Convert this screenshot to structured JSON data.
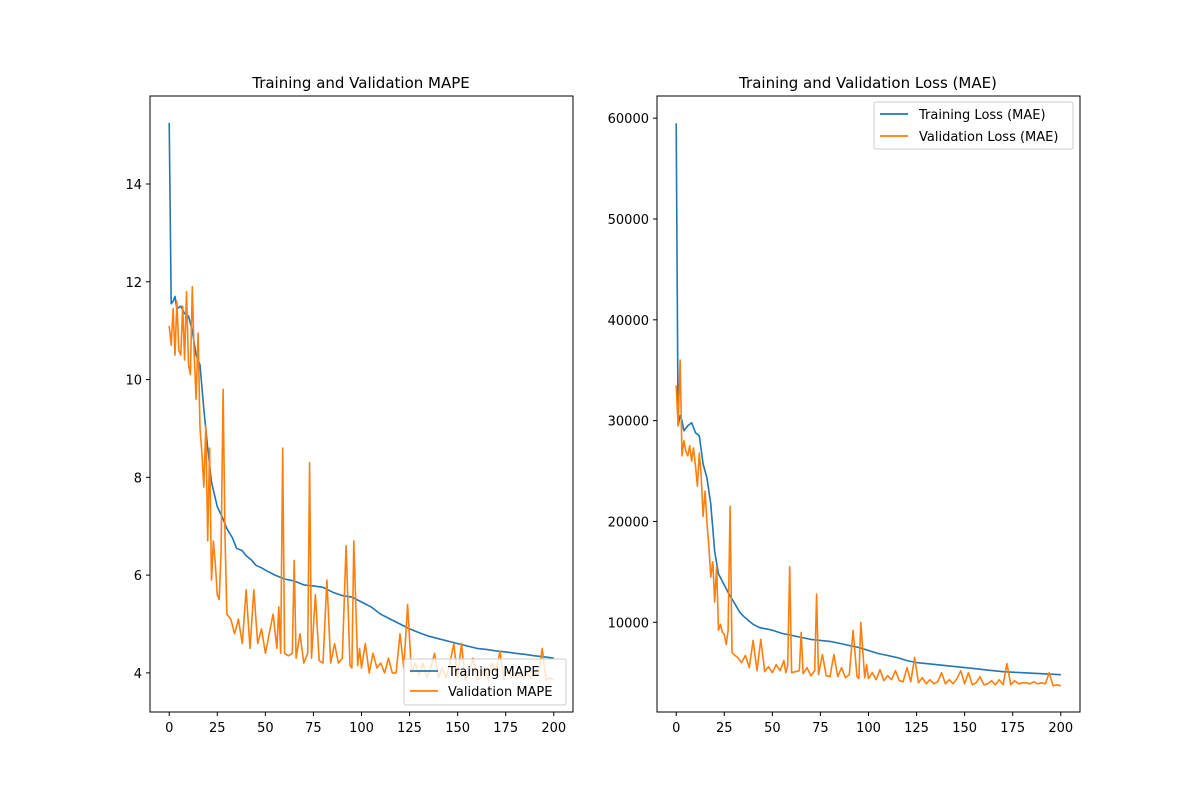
{
  "chart_data": [
    {
      "type": "line",
      "title": "Training and Validation MAPE",
      "xlabel": "",
      "ylabel": "",
      "xlim": [
        -10,
        210
      ],
      "ylim": [
        3.2,
        15.8
      ],
      "xticks": [
        0,
        25,
        50,
        75,
        100,
        125,
        150,
        175,
        200
      ],
      "yticks": [
        4,
        6,
        8,
        10,
        12,
        14
      ],
      "grid": false,
      "legend_position": "bottom-right",
      "series": [
        {
          "name": "Training MAPE",
          "color": "#1f77b4",
          "x": [
            0,
            1,
            2,
            3,
            4,
            6,
            8,
            10,
            12,
            14,
            16,
            18,
            20,
            22,
            25,
            28,
            30,
            33,
            35,
            38,
            40,
            43,
            45,
            48,
            50,
            55,
            60,
            65,
            70,
            75,
            80,
            85,
            90,
            95,
            100,
            105,
            110,
            115,
            120,
            125,
            130,
            135,
            140,
            145,
            150,
            155,
            160,
            165,
            170,
            175,
            180,
            185,
            190,
            195,
            200
          ],
          "y": [
            15.25,
            11.55,
            11.6,
            11.7,
            11.45,
            11.5,
            11.35,
            11.3,
            11.0,
            10.5,
            10.3,
            9.4,
            8.6,
            7.9,
            7.4,
            7.15,
            6.95,
            6.75,
            6.55,
            6.5,
            6.4,
            6.3,
            6.2,
            6.15,
            6.1,
            6.0,
            5.92,
            5.88,
            5.8,
            5.78,
            5.75,
            5.65,
            5.58,
            5.55,
            5.45,
            5.35,
            5.2,
            5.1,
            5.0,
            4.9,
            4.82,
            4.75,
            4.7,
            4.65,
            4.6,
            4.55,
            4.5,
            4.48,
            4.45,
            4.43,
            4.4,
            4.38,
            4.35,
            4.33,
            4.3
          ]
        },
        {
          "name": "Validation MAPE",
          "color": "#ff7f0e",
          "x": [
            0,
            1,
            2,
            3,
            4,
            5,
            6,
            7,
            8,
            9,
            10,
            11,
            12,
            13,
            14,
            15,
            16,
            17,
            18,
            19,
            20,
            21,
            22,
            23,
            24,
            25,
            26,
            27,
            28,
            29,
            30,
            32,
            34,
            36,
            38,
            40,
            42,
            44,
            46,
            48,
            50,
            52,
            54,
            56,
            57,
            58,
            59,
            60,
            62,
            64,
            65,
            66,
            68,
            70,
            72,
            73,
            74,
            76,
            78,
            80,
            82,
            84,
            86,
            88,
            90,
            92,
            94,
            95,
            96,
            98,
            99,
            100,
            102,
            104,
            106,
            108,
            110,
            112,
            114,
            116,
            118,
            120,
            122,
            124,
            126,
            128,
            130,
            132,
            134,
            136,
            138,
            140,
            142,
            144,
            146,
            148,
            150,
            152,
            154,
            156,
            158,
            160,
            162,
            164,
            166,
            168,
            170,
            172,
            174,
            176,
            178,
            180,
            182,
            184,
            186,
            188,
            190,
            192,
            194,
            196,
            198,
            200
          ],
          "y": [
            11.1,
            10.7,
            11.45,
            10.5,
            11.6,
            10.6,
            10.5,
            11.5,
            10.4,
            11.8,
            10.3,
            10.1,
            11.9,
            10.5,
            9.6,
            10.95,
            9.0,
            8.5,
            7.8,
            9.05,
            6.7,
            8.6,
            5.9,
            6.7,
            6.2,
            5.6,
            5.5,
            6.5,
            9.8,
            6.8,
            5.2,
            5.1,
            4.8,
            5.1,
            4.6,
            5.7,
            4.5,
            5.7,
            4.6,
            4.9,
            4.4,
            4.8,
            5.2,
            4.5,
            5.35,
            4.4,
            8.6,
            4.4,
            4.35,
            4.4,
            6.3,
            4.3,
            4.8,
            4.2,
            4.4,
            8.3,
            4.3,
            5.6,
            4.25,
            4.2,
            5.9,
            4.2,
            4.6,
            4.2,
            4.3,
            6.6,
            4.15,
            4.1,
            6.7,
            4.15,
            4.5,
            4.1,
            4.6,
            4.0,
            4.4,
            4.1,
            4.2,
            4.0,
            4.3,
            4.0,
            4.0,
            4.8,
            4.1,
            5.4,
            4.0,
            4.2,
            3.95,
            4.2,
            3.9,
            4.1,
            4.4,
            3.9,
            4.1,
            3.9,
            4.2,
            4.6,
            3.9,
            4.6,
            3.85,
            4.0,
            4.3,
            3.85,
            3.9,
            4.1,
            3.85,
            4.2,
            4.0,
            4.45,
            3.85,
            4.05,
            3.9,
            4.0,
            3.95,
            3.9,
            4.0,
            3.9,
            4.0,
            3.95,
            4.5,
            3.85,
            3.9,
            3.85
          ]
        }
      ]
    },
    {
      "type": "line",
      "title": "Training and Validation Loss (MAE)",
      "xlabel": "",
      "ylabel": "",
      "xlim": [
        -10,
        210
      ],
      "ylim": [
        1100,
        62200
      ],
      "xticks": [
        0,
        25,
        50,
        75,
        100,
        125,
        150,
        175,
        200
      ],
      "yticks": [
        10000,
        20000,
        30000,
        40000,
        50000,
        60000
      ],
      "grid": false,
      "legend_position": "top-right",
      "series": [
        {
          "name": "Training Loss (MAE)",
          "color": "#1f77b4",
          "x": [
            0,
            1,
            2,
            3,
            4,
            6,
            8,
            10,
            12,
            14,
            16,
            18,
            20,
            22,
            25,
            28,
            30,
            33,
            35,
            38,
            40,
            43,
            45,
            48,
            50,
            55,
            60,
            65,
            70,
            75,
            80,
            85,
            90,
            95,
            100,
            105,
            110,
            115,
            120,
            125,
            130,
            135,
            140,
            145,
            150,
            155,
            160,
            165,
            170,
            175,
            180,
            185,
            190,
            195,
            200
          ],
          "y": [
            59500,
            29500,
            30500,
            30000,
            29000,
            29500,
            29800,
            28800,
            28500,
            25700,
            24300,
            21700,
            17000,
            14800,
            13700,
            12600,
            12000,
            11000,
            10600,
            10100,
            9800,
            9500,
            9400,
            9300,
            9200,
            8900,
            8700,
            8500,
            8300,
            8200,
            8100,
            7900,
            7700,
            7500,
            7200,
            6900,
            6700,
            6500,
            6200,
            6000,
            5900,
            5800,
            5700,
            5600,
            5500,
            5400,
            5300,
            5200,
            5100,
            5050,
            5000,
            4950,
            4900,
            4850,
            4800
          ]
        },
        {
          "name": "Validation Loss (MAE)",
          "color": "#ff7f0e",
          "x": [
            0,
            1,
            2,
            3,
            4,
            5,
            6,
            7,
            8,
            9,
            10,
            11,
            12,
            13,
            14,
            15,
            16,
            17,
            18,
            19,
            20,
            21,
            22,
            23,
            24,
            25,
            26,
            27,
            28,
            29,
            30,
            32,
            34,
            36,
            38,
            40,
            42,
            44,
            46,
            48,
            50,
            52,
            54,
            56,
            57,
            58,
            59,
            60,
            62,
            64,
            65,
            66,
            68,
            70,
            72,
            73,
            74,
            76,
            78,
            80,
            82,
            84,
            86,
            88,
            90,
            92,
            94,
            95,
            96,
            98,
            99,
            100,
            102,
            104,
            106,
            108,
            110,
            112,
            114,
            116,
            118,
            120,
            122,
            124,
            126,
            128,
            130,
            132,
            134,
            136,
            138,
            140,
            142,
            144,
            146,
            148,
            150,
            152,
            154,
            156,
            158,
            160,
            162,
            164,
            166,
            168,
            170,
            172,
            174,
            176,
            178,
            180,
            182,
            184,
            186,
            188,
            190,
            192,
            194,
            196,
            198,
            200
          ],
          "y": [
            33500,
            29500,
            36000,
            26500,
            28000,
            27000,
            26500,
            27500,
            26000,
            27300,
            25500,
            23500,
            26800,
            24500,
            20500,
            23000,
            19800,
            17500,
            14500,
            16000,
            12000,
            15500,
            9200,
            9800,
            9000,
            8800,
            7800,
            9200,
            21500,
            7000,
            6800,
            6500,
            6000,
            6700,
            5500,
            8200,
            5200,
            8300,
            5100,
            5600,
            5000,
            5800,
            5200,
            6200,
            5000,
            5700,
            15500,
            5000,
            5100,
            5200,
            9000,
            4900,
            5500,
            4700,
            5200,
            12800,
            4800,
            6800,
            4700,
            4600,
            6800,
            4600,
            5500,
            4500,
            4800,
            9200,
            4600,
            4400,
            10000,
            4500,
            5800,
            4400,
            5000,
            4300,
            5300,
            4200,
            4700,
            4300,
            5200,
            4200,
            4100,
            5500,
            4100,
            6500,
            4000,
            4500,
            3900,
            4300,
            3900,
            4100,
            5000,
            3900,
            4300,
            3900,
            4400,
            5200,
            3900,
            5000,
            3800,
            4000,
            4600,
            3800,
            3900,
            4200,
            3800,
            4300,
            3800,
            5900,
            3800,
            4200,
            3900,
            4000,
            4000,
            3900,
            4100,
            3900,
            4000,
            3900,
            5000,
            3700,
            3800,
            3700
          ]
        }
      ]
    }
  ]
}
